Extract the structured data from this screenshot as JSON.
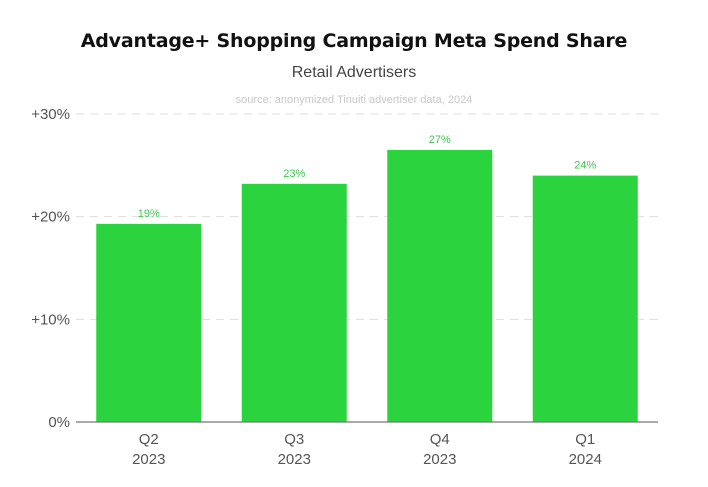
{
  "chart_data": {
    "type": "bar",
    "title": "Advantage+ Shopping Campaign Meta Spend Share",
    "subtitle": "Retail Advertisers",
    "source": "source: anonymized Tinuiti advertiser data, 2024",
    "categories": [
      [
        "Q2",
        "2023"
      ],
      [
        "Q3",
        "2023"
      ],
      [
        "Q4",
        "2023"
      ],
      [
        "Q1",
        "2024"
      ]
    ],
    "values": [
      19.3,
      23.2,
      26.5,
      24.0
    ],
    "data_labels": [
      "19%",
      "23%",
      "27%",
      "24%"
    ],
    "yticks": [
      {
        "value": 0,
        "label": "0%"
      },
      {
        "value": 10,
        "label": "+10%"
      },
      {
        "value": 20,
        "label": "+20%"
      },
      {
        "value": 30,
        "label": "+30%"
      }
    ],
    "ylim": [
      0,
      30
    ],
    "grid": true,
    "bar_color": "#2bd43f",
    "label_color": "#3cc94d"
  }
}
